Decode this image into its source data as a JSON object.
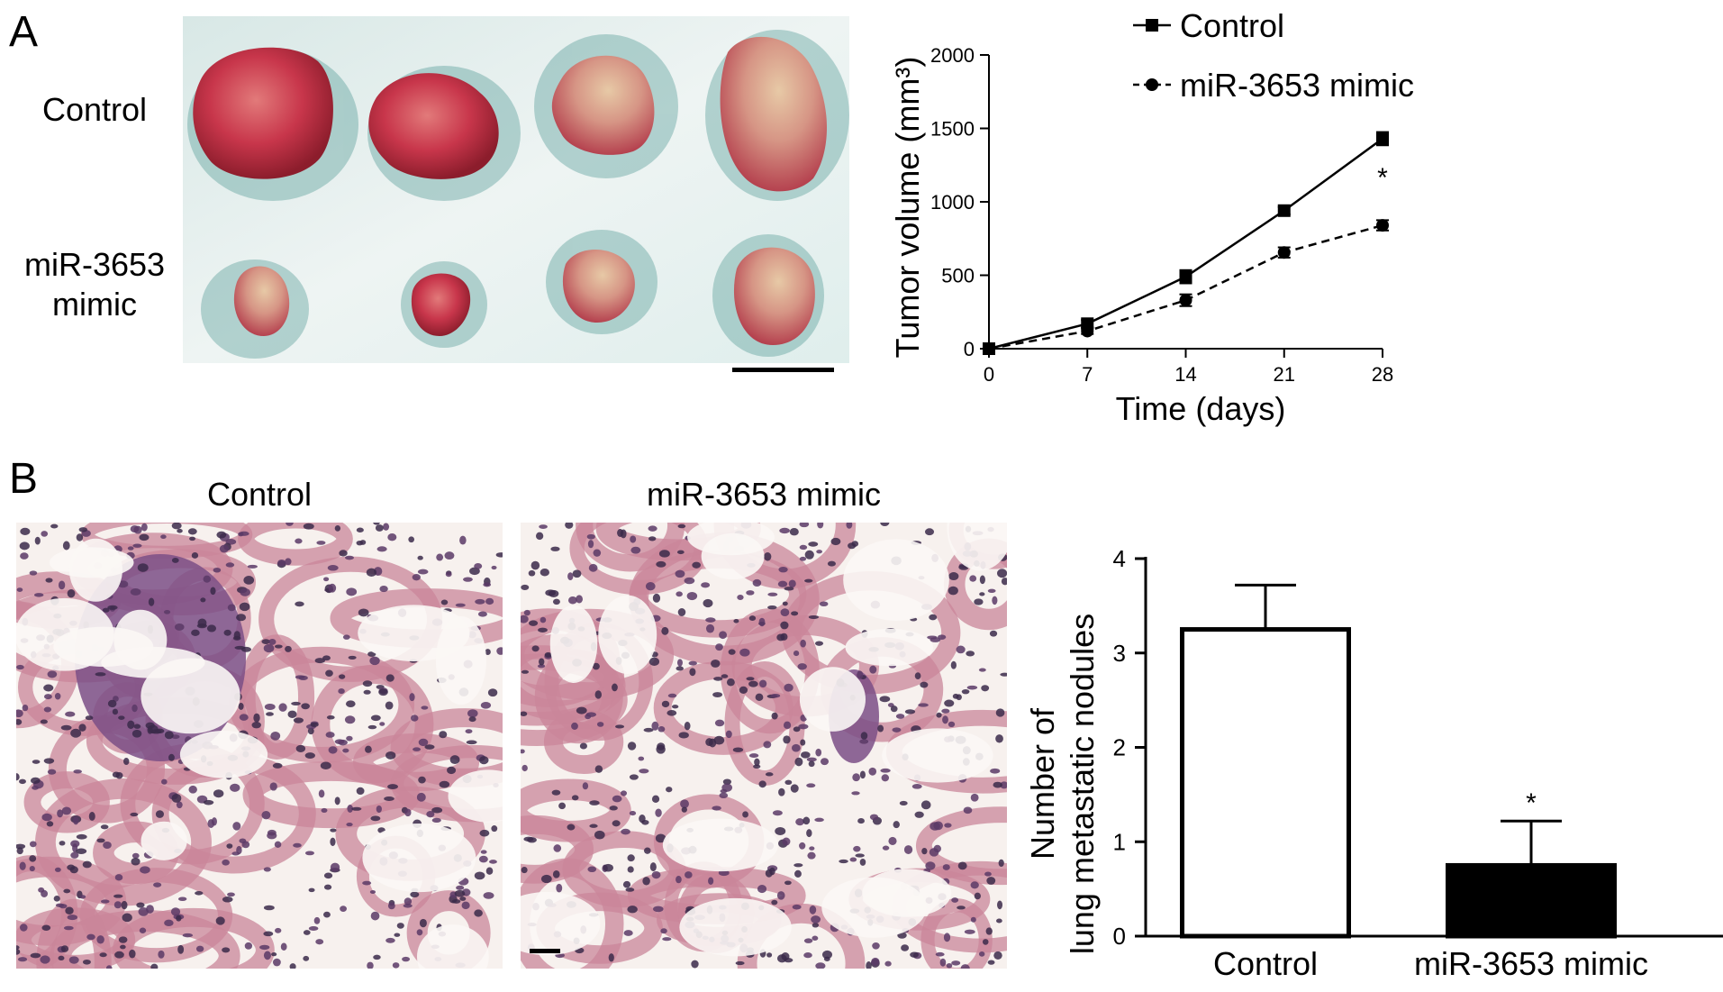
{
  "panels": {
    "a": {
      "letter": "A",
      "rows": [
        "Control",
        "miR-3653 mimic"
      ],
      "photo": "tumor-photo"
    },
    "b": {
      "letter": "B",
      "captions": [
        "Control",
        "miR-3653 mimic"
      ],
      "photos": [
        "lung-histology-control",
        "lung-histology-mimic"
      ]
    }
  },
  "chart_data": [
    {
      "type": "line",
      "xlabel": "Time (days)",
      "ylabel": "Tumor volume (mm³)",
      "x": [
        0,
        7,
        14,
        21,
        28
      ],
      "xticks": [
        "0",
        "7",
        "14",
        "21",
        "28"
      ],
      "yticks": [
        "0",
        "500",
        "1000",
        "1500",
        "2000"
      ],
      "xlim": [
        0,
        28
      ],
      "ylim": [
        0,
        2000
      ],
      "legend_position": "top-right",
      "series": [
        {
          "name": "Control",
          "marker": "square",
          "line": "solid",
          "values": [
            0,
            170,
            490,
            940,
            1430
          ],
          "errors": [
            0,
            25,
            45,
            25,
            45
          ]
        },
        {
          "name": "miR-3653 mimic",
          "marker": "circle",
          "line": "dashed",
          "values": [
            0,
            120,
            330,
            655,
            840
          ],
          "errors": [
            0,
            20,
            40,
            35,
            35
          ]
        }
      ],
      "annotations": [
        {
          "text": "*",
          "x": 28
        }
      ]
    },
    {
      "type": "bar",
      "categories": [
        "Control",
        "miR-3653 mimic"
      ],
      "values": [
        3.25,
        0.75
      ],
      "errors": [
        0.47,
        0.47
      ],
      "fills": [
        "#ffffff",
        "#000000"
      ],
      "ylabel_lines": [
        "Number of",
        "lung metastatic nodules"
      ],
      "yticks": [
        "0",
        "1",
        "2",
        "3",
        "4"
      ],
      "ylim": [
        0,
        4
      ],
      "annotations": [
        {
          "text": "*",
          "category": "miR-3653 mimic"
        }
      ]
    }
  ]
}
